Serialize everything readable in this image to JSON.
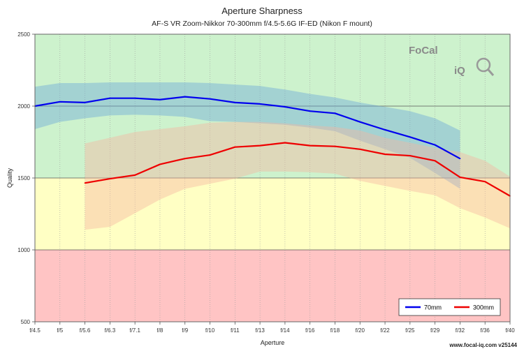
{
  "chart_data": {
    "type": "line",
    "title": "Aperture Sharpness",
    "subtitle": "AF-S VR Zoom-Nikkor 70-300mm f/4.5-5.6G IF-ED (Nikon F mount)",
    "xlabel": "Aperture",
    "ylabel": "Quality",
    "categories": [
      "f/4.5",
      "f/5",
      "f/5.6",
      "f/6.3",
      "f/7.1",
      "f/8",
      "f/9",
      "f/10",
      "f/11",
      "f/13",
      "f/14",
      "f/16",
      "f/18",
      "f/20",
      "f/22",
      "f/25",
      "f/29",
      "f/32",
      "f/36",
      "f/40"
    ],
    "ylim": [
      500,
      2500
    ],
    "yticks": [
      500,
      1000,
      1500,
      2000,
      2500
    ],
    "bands": [
      {
        "from": 500,
        "to": 1000,
        "color": "#ffc4c4"
      },
      {
        "from": 1000,
        "to": 1500,
        "color": "#ffffc4"
      },
      {
        "from": 1500,
        "to": 2500,
        "color": "#cdf2cd"
      }
    ],
    "grid": true,
    "legend": "bottom-right",
    "series": [
      {
        "name": "70mm",
        "color": "#0000ee",
        "band_color": "#6aa6d8",
        "values": [
          2000,
          2030,
          2025,
          2055,
          2055,
          2045,
          2065,
          2050,
          2025,
          2015,
          1995,
          1965,
          1950,
          1890,
          1835,
          1785,
          1730,
          1635,
          null,
          null
        ],
        "upper": [
          2135,
          2160,
          2160,
          2165,
          2165,
          2165,
          2165,
          2160,
          2150,
          2140,
          2115,
          2085,
          2060,
          2025,
          1995,
          1965,
          1915,
          1830,
          null,
          null
        ],
        "lower": [
          1840,
          1890,
          1915,
          1935,
          1940,
          1935,
          1925,
          1895,
          1890,
          1880,
          1870,
          1850,
          1825,
          1760,
          1700,
          1640,
          1535,
          1425,
          null,
          null
        ]
      },
      {
        "name": "300mm",
        "color": "#ee0000",
        "band_color": "#f5b4a0",
        "values": [
          null,
          null,
          1465,
          1495,
          1520,
          1595,
          1635,
          1660,
          1715,
          1725,
          1745,
          1725,
          1720,
          1700,
          1665,
          1655,
          1620,
          1505,
          1475,
          1375
        ],
        "upper": [
          null,
          null,
          1740,
          1780,
          1820,
          1840,
          1860,
          1885,
          1890,
          1890,
          1880,
          1865,
          1855,
          1830,
          1780,
          1745,
          1710,
          1680,
          1620,
          1510
        ],
        "lower": [
          null,
          null,
          1140,
          1160,
          1255,
          1350,
          1425,
          1460,
          1495,
          1545,
          1545,
          1540,
          1530,
          1480,
          1445,
          1410,
          1380,
          1290,
          1225,
          1150
        ]
      }
    ]
  },
  "logo": {
    "text_top": "FoCal",
    "text_bottom": "iQ"
  },
  "watermark": "www.focal-iq.com  v25144"
}
